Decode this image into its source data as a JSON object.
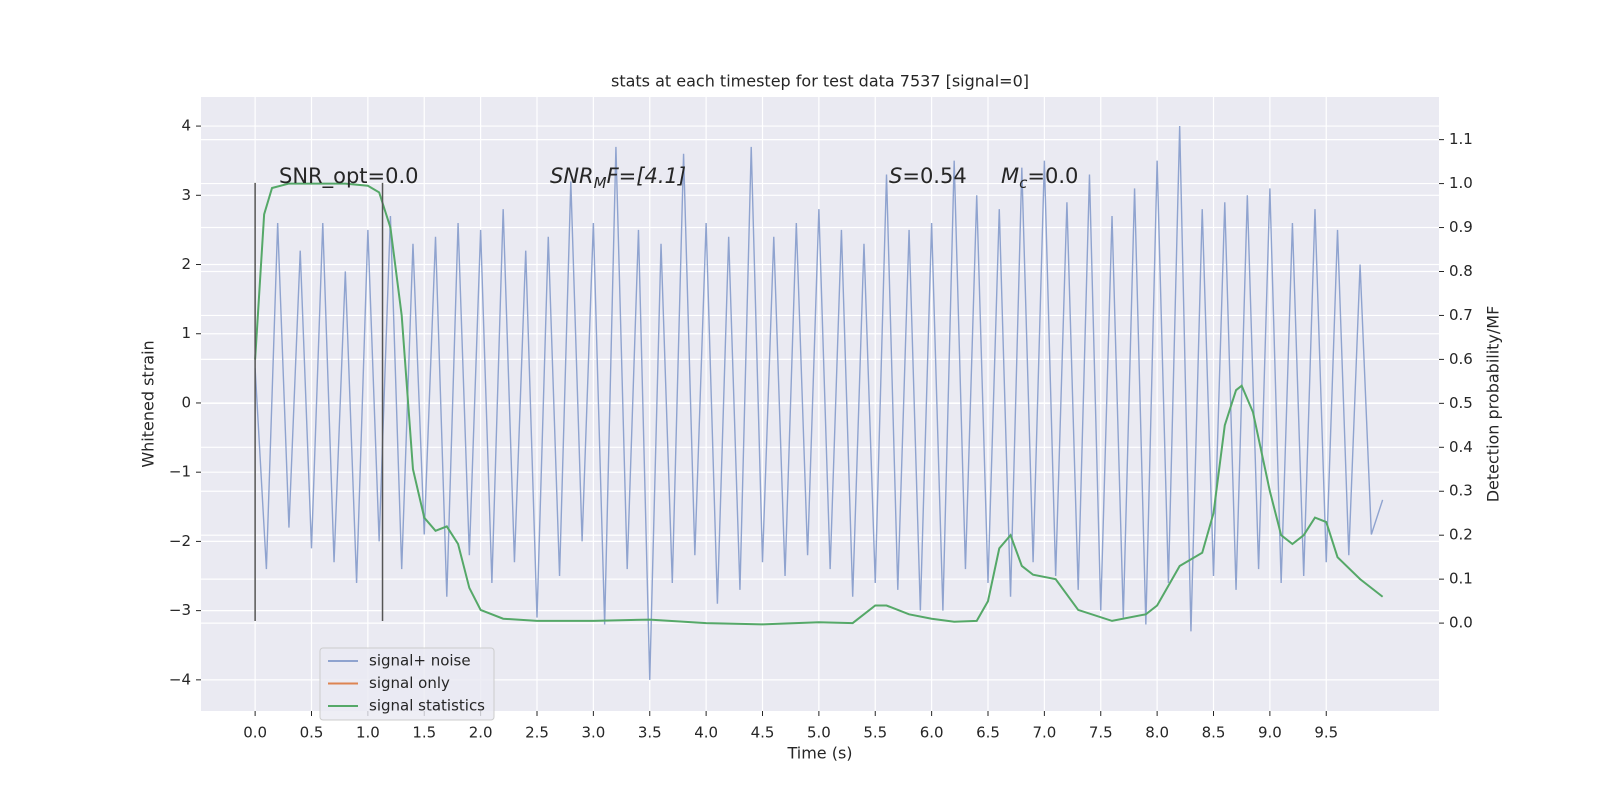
{
  "chart_data": {
    "type": "line",
    "title": "stats at each timestep for test data 7537 [signal=0]",
    "x_label": "Time (s)",
    "y_label": "Whitened strain",
    "y2_label": "Detection probability/MF",
    "xlim": [
      -0.48,
      10.5
    ],
    "ylim": [
      -4.45,
      4.42
    ],
    "y2lim": [
      -0.2,
      1.197
    ],
    "xticks": [
      {
        "value": 0,
        "label": "0.0"
      },
      0.5,
      {
        "value": 1,
        "label": "1.0"
      },
      1.5,
      {
        "value": 2,
        "label": "2.0"
      },
      2.5,
      {
        "value": 3,
        "label": "3.0"
      },
      3.5,
      {
        "value": 4,
        "label": "4.0"
      },
      4.5,
      {
        "value": 5,
        "label": "5.0"
      },
      5.5,
      {
        "value": 6,
        "label": "6.0"
      },
      6.5,
      {
        "value": 7,
        "label": "7.0"
      },
      7.5,
      {
        "value": 8,
        "label": "8.0"
      },
      8.5,
      {
        "value": 9,
        "label": "9.0"
      },
      9.5
    ],
    "yticks": [
      {
        "value": -4,
        "label": "−4"
      },
      {
        "value": -3,
        "label": "−3"
      },
      {
        "value": -2,
        "label": "−2"
      },
      {
        "value": -1,
        "label": "−1"
      },
      0,
      1,
      2,
      3,
      4
    ],
    "y2ticks": [
      {
        "value": 0,
        "label": "0.0"
      },
      0.1,
      0.2,
      0.3,
      0.4,
      0.5,
      0.6,
      0.7,
      0.8,
      0.9,
      {
        "value": 1,
        "label": "1.0"
      },
      1.1
    ],
    "grid": true,
    "legend": "lower left",
    "series": [
      {
        "name": "signal+ noise",
        "color": "#8fa3cf",
        "x": [
          0,
          0.1,
          0.2,
          0.3,
          0.4,
          0.5,
          0.6,
          0.7,
          0.8,
          0.9,
          1,
          1.1,
          1.2,
          1.3,
          1.4,
          1.5,
          1.6,
          1.7,
          1.8,
          1.9,
          2,
          2.1,
          2.2,
          2.3,
          2.4,
          2.5,
          2.6,
          2.7,
          2.8,
          2.9,
          3,
          3.1,
          3.2,
          3.3,
          3.4,
          3.5,
          3.6,
          3.7,
          3.8,
          3.9,
          4,
          4.1,
          4.2,
          4.3,
          4.4,
          4.5,
          4.6,
          4.7,
          4.8,
          4.9,
          5,
          5.1,
          5.2,
          5.3,
          5.4,
          5.5,
          5.6,
          5.7,
          5.8,
          5.9,
          6,
          6.1,
          6.2,
          6.3,
          6.4,
          6.5,
          6.6,
          6.7,
          6.8,
          6.9,
          7,
          7.1,
          7.2,
          7.3,
          7.4,
          7.5,
          7.6,
          7.7,
          7.8,
          7.9,
          8,
          8.1,
          8.2,
          8.3,
          8.4,
          8.5,
          8.6,
          8.7,
          8.8,
          8.9,
          9,
          9.1,
          9.2,
          9.3,
          9.4,
          9.5,
          9.6,
          9.7,
          9.8,
          9.9,
          10
        ],
        "values": [
          0.5,
          -2.4,
          2.6,
          -1.8,
          2.2,
          -2.1,
          2.6,
          -2.3,
          1.9,
          -2.6,
          2.5,
          -2.0,
          2.7,
          -2.4,
          2.3,
          -1.9,
          2.4,
          -2.8,
          2.6,
          -2.2,
          2.5,
          -2.6,
          2.8,
          -2.3,
          2.2,
          -3.1,
          2.4,
          -2.5,
          3.2,
          -2.0,
          2.6,
          -3.2,
          3.7,
          -2.4,
          2.5,
          -4.0,
          2.3,
          -2.6,
          3.6,
          -2.2,
          2.6,
          -2.9,
          2.4,
          -2.7,
          3.7,
          -2.3,
          2.4,
          -2.5,
          2.6,
          -2.2,
          2.8,
          -2.4,
          2.5,
          -2.8,
          2.3,
          -2.6,
          3.3,
          -2.7,
          2.5,
          -3.0,
          2.6,
          -3.0,
          3.5,
          -2.4,
          3.0,
          -2.6,
          2.8,
          -2.8,
          3.4,
          -2.3,
          3.5,
          -2.5,
          2.9,
          -2.7,
          3.3,
          -3.0,
          2.7,
          -3.1,
          3.1,
          -3.2,
          3.5,
          -2.6,
          4.0,
          -3.3,
          2.8,
          -2.5,
          2.9,
          -2.7,
          3.0,
          -2.4,
          3.1,
          -2.6,
          2.6,
          -2.5,
          2.8,
          -2.3,
          2.5,
          -2.2,
          2.0,
          -1.9,
          -1.4
        ]
      },
      {
        "name": "signal only",
        "color": "#dd8452"
      },
      {
        "name": "signal statistics",
        "color": "#55a868",
        "axis": "y2",
        "x": [
          0,
          0.08,
          0.15,
          0.3,
          0.5,
          0.8,
          1.0,
          1.1,
          1.2,
          1.3,
          1.4,
          1.5,
          1.6,
          1.7,
          1.8,
          1.9,
          2.0,
          2.2,
          2.5,
          3.0,
          3.5,
          4.0,
          4.5,
          5.0,
          5.3,
          5.5,
          5.6,
          5.8,
          6.0,
          6.2,
          6.4,
          6.5,
          6.6,
          6.7,
          6.8,
          6.9,
          7.1,
          7.3,
          7.6,
          7.9,
          8.0,
          8.2,
          8.4,
          8.5,
          8.6,
          8.7,
          8.75,
          8.85,
          9.0,
          9.1,
          9.2,
          9.3,
          9.4,
          9.5,
          9.6,
          9.8,
          10.0
        ],
        "values": [
          0.6,
          0.93,
          0.99,
          1.0,
          1.0,
          1.0,
          0.995,
          0.98,
          0.9,
          0.7,
          0.35,
          0.24,
          0.21,
          0.22,
          0.18,
          0.08,
          0.03,
          0.01,
          0.005,
          0.005,
          0.008,
          0.0,
          -0.003,
          0.002,
          0.0,
          0.04,
          0.04,
          0.02,
          0.01,
          0.003,
          0.005,
          0.05,
          0.17,
          0.2,
          0.13,
          0.11,
          0.1,
          0.03,
          0.005,
          0.02,
          0.04,
          0.13,
          0.16,
          0.25,
          0.45,
          0.53,
          0.54,
          0.48,
          0.3,
          0.2,
          0.18,
          0.2,
          0.24,
          0.23,
          0.15,
          0.1,
          0.06
        ]
      }
    ],
    "vlines": {
      "x": [
        0,
        1.13
      ],
      "ymin": -3.15,
      "ymax": 3.18,
      "color": "#555555"
    },
    "annotations": [
      {
        "text": "SNR_opt=0.0"
      },
      {
        "base": "SNR",
        "sub": "M",
        "rest": "F=[4.1]"
      },
      {
        "base": "S",
        "rest": "=0.54"
      },
      {
        "base": "M",
        "sub": "c",
        "rest": "=0.0"
      }
    ]
  }
}
